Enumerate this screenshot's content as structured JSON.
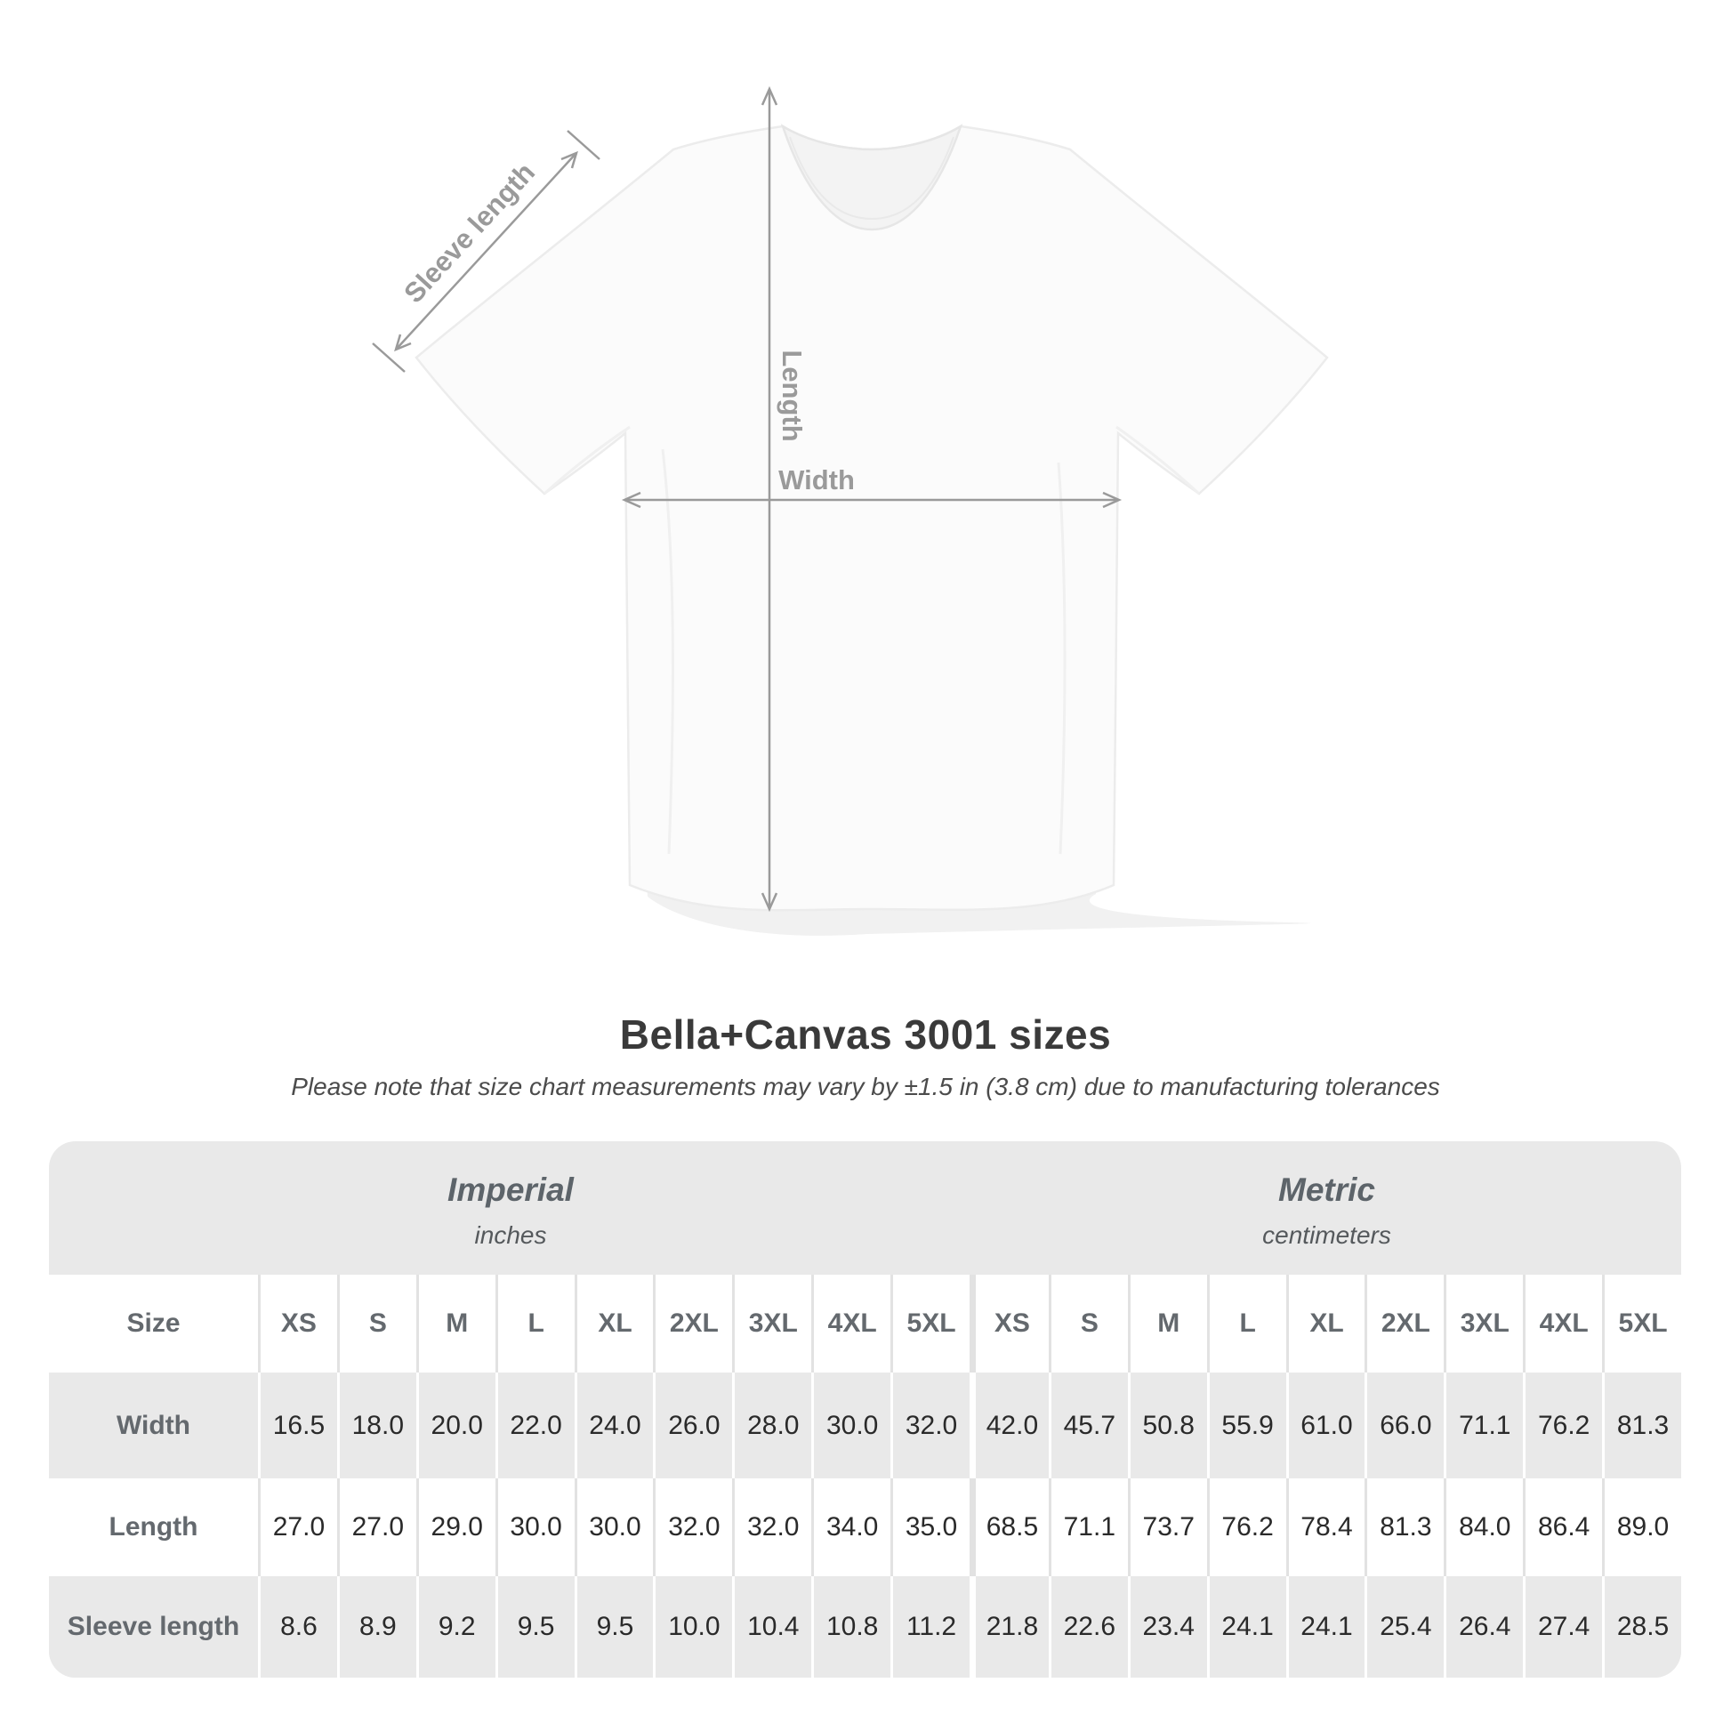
{
  "shirt_diagram": {
    "annotation_color": "#9a9a9a",
    "labels": {
      "sleeve": "Sleeve length",
      "length": "Length",
      "width": "Width"
    }
  },
  "title": "Bella+Canvas 3001 sizes",
  "subtitle": "Please note that size chart measurements may vary by ±1.5 in (3.8 cm) due to manufacturing tolerances",
  "table": {
    "groups": [
      {
        "label": "Imperial",
        "sublabel": "inches"
      },
      {
        "label": "Metric",
        "sublabel": "centimeters"
      }
    ],
    "size_row_label": "Size",
    "sizes": [
      "XS",
      "S",
      "M",
      "L",
      "XL",
      "2XL",
      "3XL",
      "4XL",
      "5XL"
    ],
    "rows": [
      {
        "label": "Width",
        "imperial": [
          "16.5",
          "18.0",
          "20.0",
          "22.0",
          "24.0",
          "26.0",
          "28.0",
          "30.0",
          "32.0"
        ],
        "metric": [
          "42.0",
          "45.7",
          "50.8",
          "55.9",
          "61.0",
          "66.0",
          "71.1",
          "76.2",
          "81.3"
        ]
      },
      {
        "label": "Length",
        "imperial": [
          "27.0",
          "27.0",
          "29.0",
          "30.0",
          "30.0",
          "32.0",
          "32.0",
          "34.0",
          "35.0"
        ],
        "metric": [
          "68.5",
          "71.1",
          "73.7",
          "76.2",
          "78.4",
          "81.3",
          "84.0",
          "86.4",
          "89.0"
        ]
      },
      {
        "label": "Sleeve length",
        "imperial": [
          "8.6",
          "8.9",
          "9.2",
          "9.5",
          "9.5",
          "10.0",
          "10.4",
          "10.8",
          "11.2"
        ],
        "metric": [
          "21.8",
          "22.6",
          "23.4",
          "24.1",
          "24.1",
          "25.4",
          "26.4",
          "27.4",
          "28.5"
        ]
      }
    ]
  },
  "chart_data": {
    "type": "table",
    "title": "Bella+Canvas 3001 sizes",
    "note": "Please note that size chart measurements may vary by ±1.5 in (3.8 cm) due to manufacturing tolerances",
    "column_groups": [
      "Imperial (inches)",
      "Metric (centimeters)"
    ],
    "columns": [
      "XS",
      "S",
      "M",
      "L",
      "XL",
      "2XL",
      "3XL",
      "4XL",
      "5XL"
    ],
    "rows": [
      {
        "label": "Width",
        "imperial_in": [
          16.5,
          18.0,
          20.0,
          22.0,
          24.0,
          26.0,
          28.0,
          30.0,
          32.0
        ],
        "metric_cm": [
          42.0,
          45.7,
          50.8,
          55.9,
          61.0,
          66.0,
          71.1,
          76.2,
          81.3
        ]
      },
      {
        "label": "Length",
        "imperial_in": [
          27.0,
          27.0,
          29.0,
          30.0,
          30.0,
          32.0,
          32.0,
          34.0,
          35.0
        ],
        "metric_cm": [
          68.5,
          71.1,
          73.7,
          76.2,
          78.4,
          81.3,
          84.0,
          86.4,
          89.0
        ]
      },
      {
        "label": "Sleeve length",
        "imperial_in": [
          8.6,
          8.9,
          9.2,
          9.5,
          9.5,
          10.0,
          10.4,
          10.8,
          11.2
        ],
        "metric_cm": [
          21.8,
          22.6,
          23.4,
          24.1,
          24.1,
          25.4,
          26.4,
          27.4,
          28.5
        ]
      }
    ]
  }
}
